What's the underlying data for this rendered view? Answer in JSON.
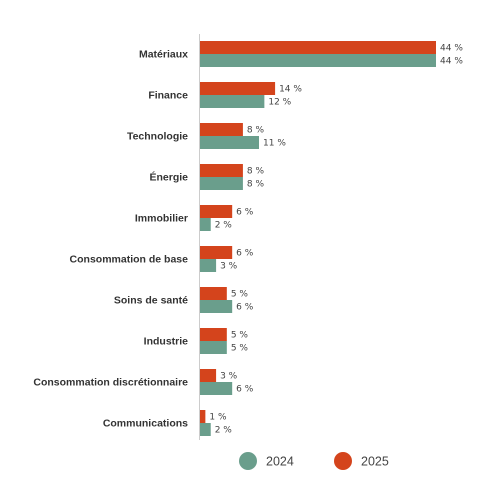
{
  "chart_data": {
    "type": "bar",
    "orientation": "horizontal",
    "categories": [
      "Matériaux",
      "Finance",
      "Technologie",
      "Énergie",
      "Immobilier",
      "Consommation de base",
      "Soins de santé",
      "Industrie",
      "Consommation discrétionnaire",
      "Communications"
    ],
    "series": [
      {
        "name": "2025",
        "color": "#d4441c",
        "values": [
          44,
          14,
          8,
          8,
          6,
          6,
          5,
          5,
          3,
          1
        ],
        "labels": [
          "44 %",
          "14 %",
          "8 %",
          "8 %",
          "6 %",
          "6 %",
          "5 %",
          "5 %",
          "3 %",
          "1 %"
        ]
      },
      {
        "name": "2024",
        "color": "#6a9e8c",
        "values": [
          44,
          12,
          11,
          8,
          2,
          3,
          6,
          5,
          6,
          2
        ],
        "labels": [
          "44 %",
          "12 %",
          "11 %",
          "8 %",
          "2 %",
          "3 %",
          "6 %",
          "5 %",
          "6 %",
          "2 %"
        ]
      }
    ],
    "legend": {
      "placement": "bottom",
      "order": [
        "2024",
        "2025"
      ]
    },
    "xlim": [
      0,
      44
    ],
    "grid": false
  }
}
